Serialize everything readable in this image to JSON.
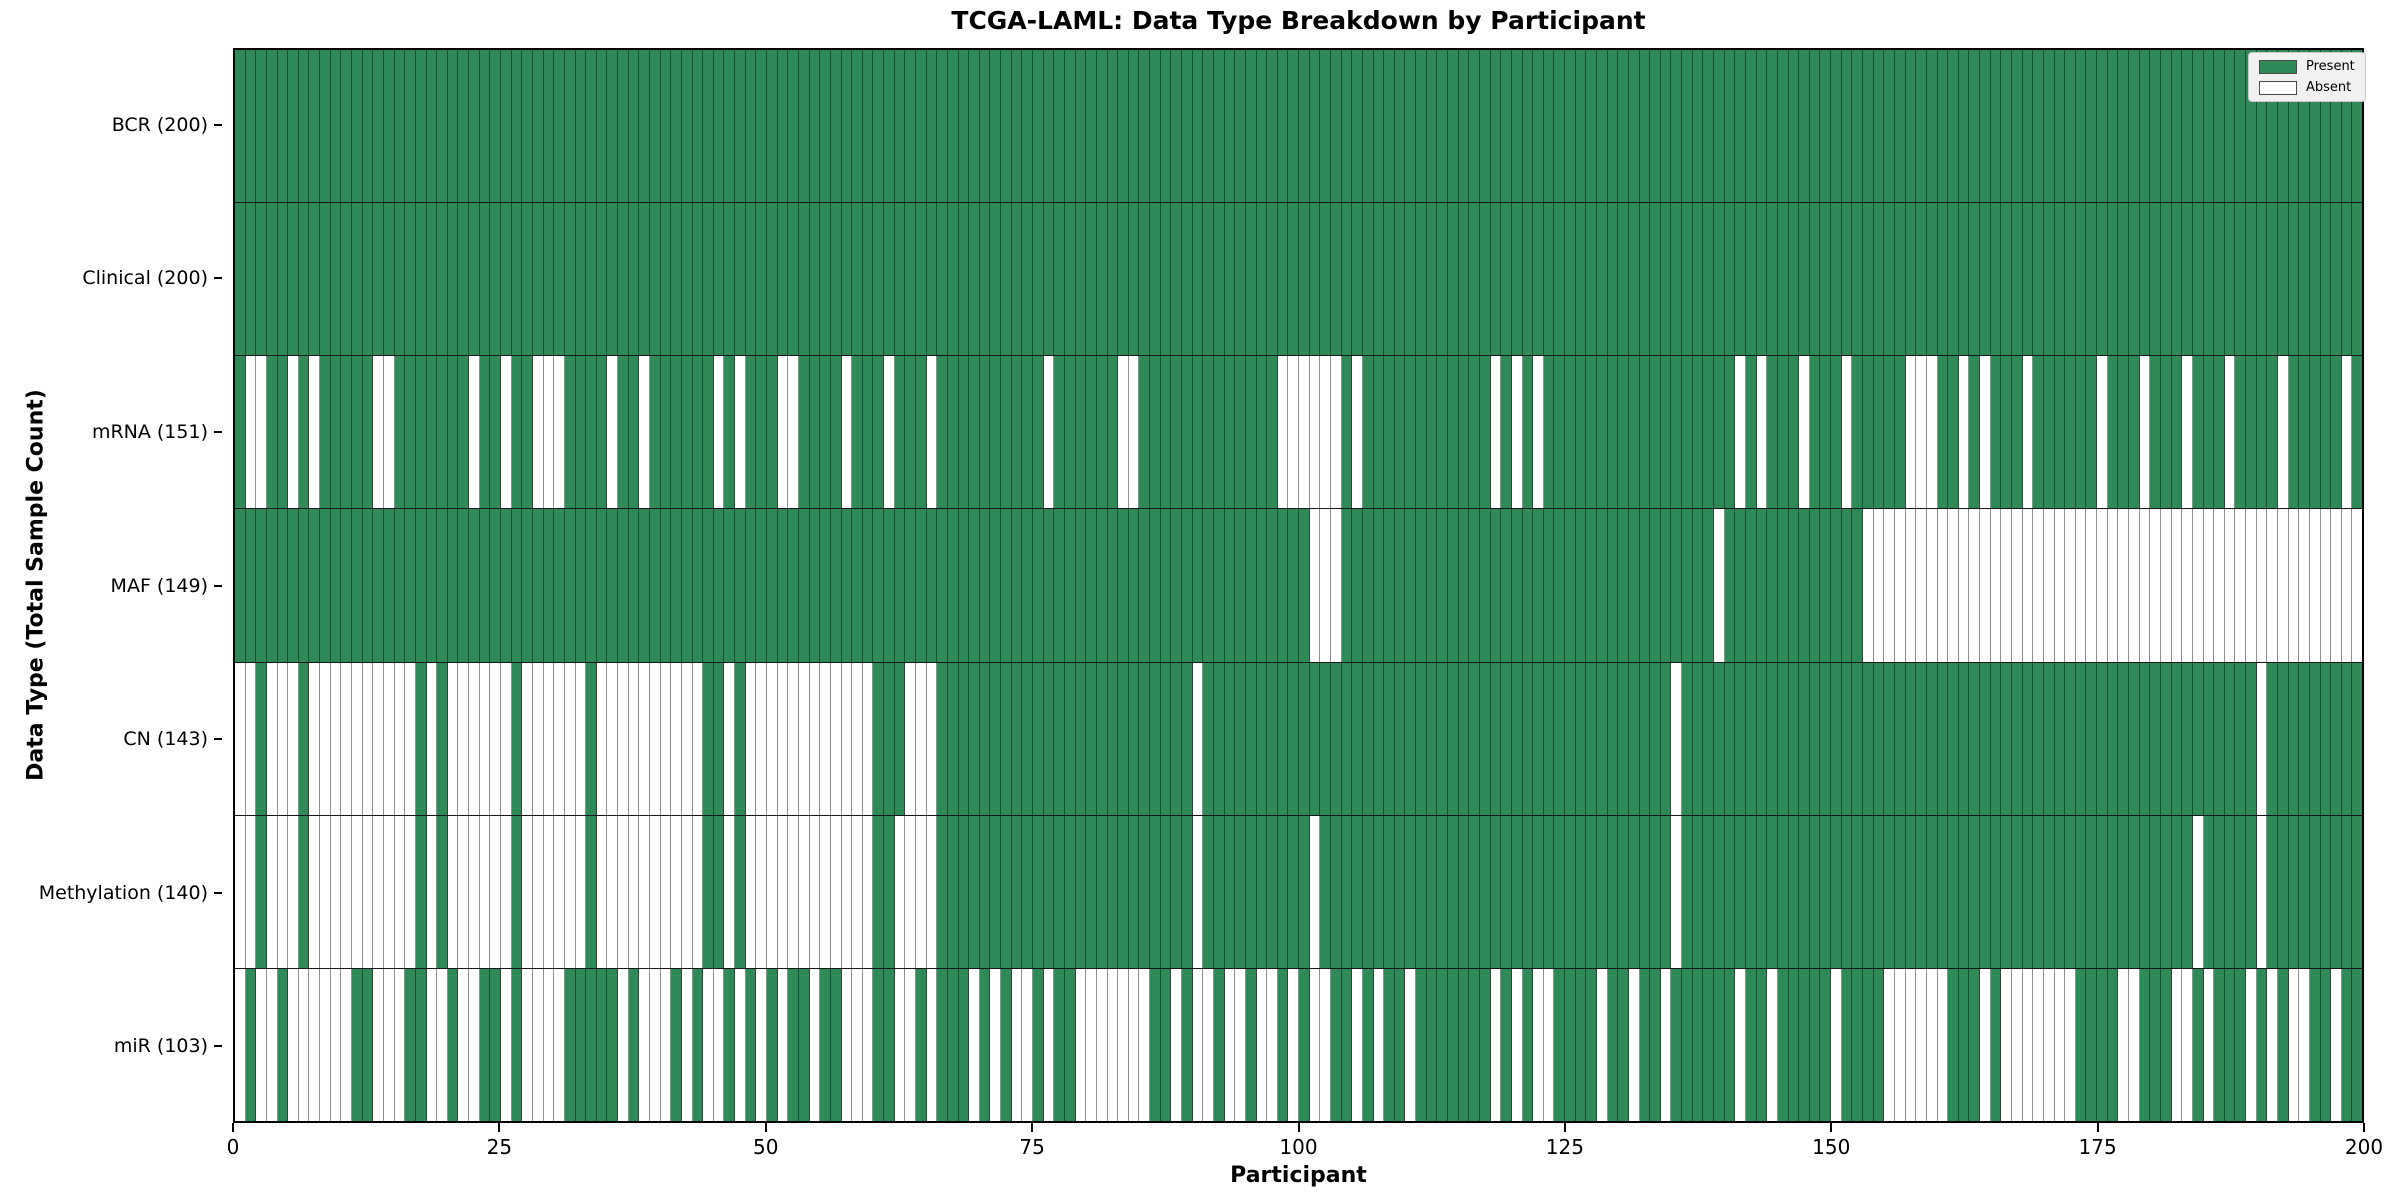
{
  "title": "TCGA-LAML: Data Type Breakdown by Participant",
  "axes": {
    "x_label": "Participant",
    "y_label": "Data Type (Total Sample Count)",
    "x_ticks": [
      0,
      25,
      50,
      75,
      100,
      125,
      150,
      175,
      200
    ],
    "x_range": [
      0,
      200
    ]
  },
  "legend": {
    "items": [
      {
        "label": "Present",
        "color": "#2e8b57"
      },
      {
        "label": "Absent",
        "color": "#ffffff"
      }
    ]
  },
  "colors": {
    "present": "#2e8b57",
    "absent": "#ffffff",
    "row_divider": "#151515",
    "grid_on_present": "#1d4f33",
    "grid_on_absent": "#8f8f8f"
  },
  "chart_data": {
    "type": "heatmap",
    "title": "TCGA-LAML: Data Type Breakdown by Participant",
    "xlabel": "Participant",
    "ylabel": "Data Type (Total Sample Count)",
    "n_participants": 200,
    "value_legend": {
      "1": "Present",
      "0": "Absent"
    },
    "categories": [
      "BCR (200)",
      "Clinical (200)",
      "mRNA (151)",
      "MAF (149)",
      "CN (143)",
      "Methylation (140)",
      "miR (103)"
    ],
    "rows": [
      {
        "label": "BCR",
        "total": 200,
        "display": "BCR (200)",
        "absent": []
      },
      {
        "label": "Clinical",
        "total": 200,
        "display": "Clinical (200)",
        "absent": []
      },
      {
        "label": "mRNA",
        "total": 151,
        "display": "mRNA (151)",
        "absent": [
          1,
          2,
          5,
          7,
          13,
          14,
          22,
          25,
          28,
          29,
          30,
          35,
          38,
          45,
          47,
          51,
          52,
          57,
          61,
          65,
          76,
          83,
          84,
          98,
          99,
          100,
          101,
          102,
          103,
          105,
          118,
          120,
          122,
          141,
          143,
          147,
          151,
          157,
          158,
          159,
          162,
          164,
          168,
          175,
          179,
          183,
          187,
          192,
          198
        ]
      },
      {
        "label": "MAF",
        "total": 149,
        "display": "MAF (149)",
        "absent": [
          101,
          102,
          103,
          139,
          153,
          154,
          155,
          156,
          157,
          158,
          159,
          160,
          161,
          162,
          163,
          164,
          165,
          166,
          167,
          168,
          169,
          170,
          171,
          172,
          173,
          174,
          175,
          176,
          177,
          178,
          179,
          180,
          181,
          182,
          183,
          184,
          185,
          186,
          187,
          188,
          189,
          190,
          191,
          192,
          193,
          194,
          195,
          196,
          197,
          198,
          199
        ]
      },
      {
        "label": "CN",
        "total": 143,
        "display": "CN (143)",
        "absent": [
          0,
          1,
          3,
          4,
          5,
          7,
          8,
          9,
          10,
          11,
          12,
          13,
          14,
          15,
          16,
          18,
          20,
          21,
          22,
          23,
          24,
          25,
          27,
          28,
          29,
          30,
          31,
          32,
          34,
          35,
          36,
          37,
          38,
          39,
          40,
          41,
          42,
          43,
          46,
          48,
          49,
          50,
          51,
          52,
          53,
          54,
          55,
          56,
          57,
          58,
          59,
          63,
          64,
          65,
          90,
          135,
          190
        ]
      },
      {
        "label": "Methylation",
        "total": 140,
        "display": "Methylation (140)",
        "absent": [
          0,
          1,
          3,
          4,
          5,
          7,
          8,
          9,
          10,
          11,
          12,
          13,
          14,
          15,
          16,
          18,
          20,
          21,
          22,
          23,
          24,
          25,
          27,
          28,
          29,
          30,
          31,
          32,
          34,
          35,
          36,
          37,
          38,
          39,
          40,
          41,
          42,
          43,
          46,
          48,
          49,
          50,
          51,
          52,
          53,
          54,
          55,
          56,
          57,
          58,
          59,
          62,
          63,
          64,
          65,
          90,
          101,
          135,
          184,
          190
        ]
      },
      {
        "label": "miR",
        "total": 103,
        "display": "miR (103)",
        "absent": [
          0,
          2,
          3,
          5,
          6,
          7,
          8,
          9,
          10,
          13,
          14,
          15,
          18,
          19,
          21,
          22,
          25,
          27,
          28,
          29,
          30,
          36,
          38,
          39,
          40,
          42,
          44,
          45,
          47,
          49,
          51,
          54,
          57,
          58,
          59,
          62,
          63,
          65,
          69,
          71,
          73,
          74,
          76,
          79,
          80,
          81,
          82,
          83,
          84,
          85,
          88,
          90,
          91,
          93,
          94,
          96,
          97,
          99,
          101,
          102,
          105,
          107,
          110,
          118,
          120,
          122,
          123,
          128,
          131,
          134,
          141,
          144,
          150,
          155,
          156,
          157,
          158,
          159,
          160,
          164,
          166,
          167,
          168,
          169,
          170,
          171,
          172,
          177,
          178,
          182,
          183,
          185,
          189,
          191,
          193,
          194,
          197
        ]
      }
    ]
  }
}
